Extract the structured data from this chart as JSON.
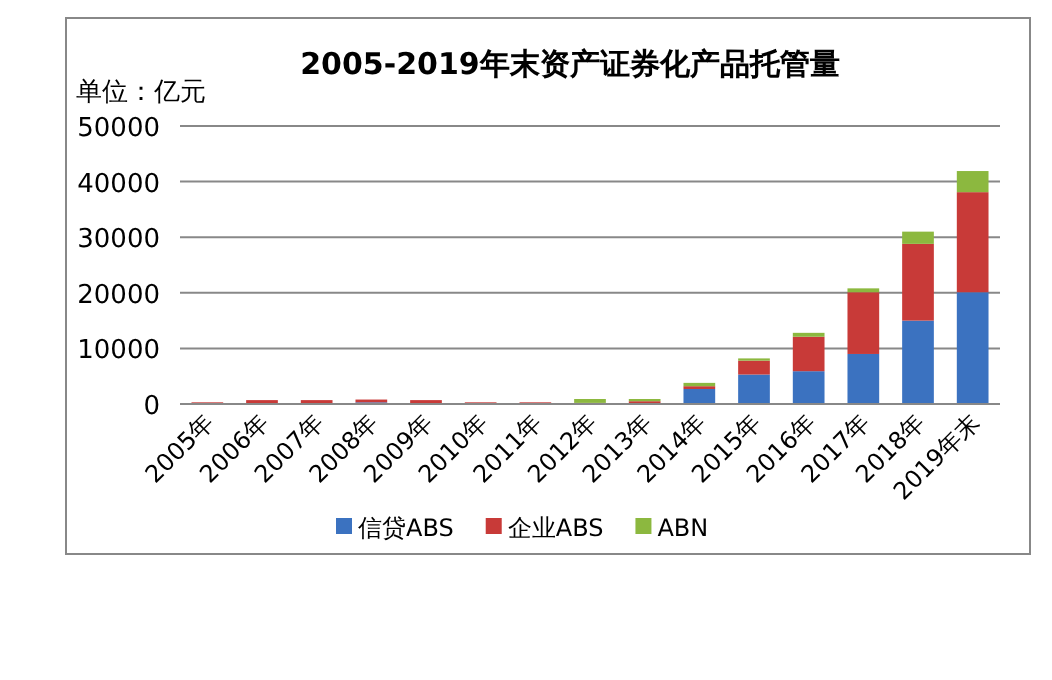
{
  "chart_data": {
    "type": "bar",
    "stacked": true,
    "title": "2005-2019年末资产证券化产品托管量",
    "ylabel": "单位：亿元",
    "categories": [
      "2005年",
      "2006年",
      "2007年",
      "2008年",
      "2009年",
      "2010年",
      "2011年",
      "2012年",
      "2013年",
      "2014年",
      "2015年",
      "2016年",
      "2017年",
      "2018年",
      "2019年末"
    ],
    "series": [
      {
        "name": "信贷ABS",
        "color": "#3b72c0",
        "values": [
          0,
          0,
          0,
          300,
          0,
          0,
          0,
          100,
          100,
          2700,
          5300,
          5900,
          9000,
          15000,
          20100
        ]
      },
      {
        "name": "企业ABS",
        "color": "#c83a38",
        "values": [
          300,
          700,
          700,
          500,
          700,
          300,
          300,
          100,
          400,
          500,
          2500,
          6200,
          11100,
          13800,
          18000
        ]
      },
      {
        "name": "ABN",
        "color": "#8cb83f",
        "values": [
          0,
          0,
          0,
          0,
          0,
          0,
          0,
          700,
          400,
          600,
          400,
          700,
          700,
          2200,
          3800
        ]
      }
    ],
    "ylim": [
      0,
      50000
    ],
    "yticks": [
      0,
      10000,
      20000,
      30000,
      40000,
      50000
    ],
    "grid": "y",
    "legend": "bottom"
  }
}
